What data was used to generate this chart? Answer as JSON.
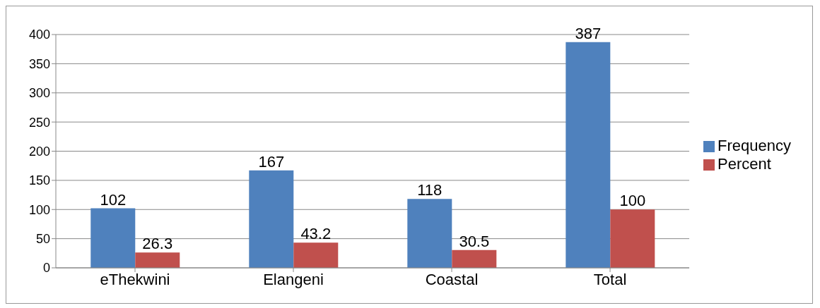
{
  "chart_data": {
    "type": "bar",
    "categories": [
      "eThekwini",
      "Elangeni",
      "Coastal",
      "Total"
    ],
    "series": [
      {
        "name": "Frequency",
        "color": "#4f81bd",
        "values": [
          102,
          167,
          118,
          387
        ]
      },
      {
        "name": "Percent",
        "color": "#c0504d",
        "values": [
          26.3,
          43.2,
          30.5,
          100
        ]
      }
    ],
    "ylim": [
      0,
      400
    ],
    "yticks": [
      0,
      50,
      100,
      150,
      200,
      250,
      300,
      350,
      400
    ],
    "grid": "y",
    "legend": "right",
    "data_labels": true
  }
}
